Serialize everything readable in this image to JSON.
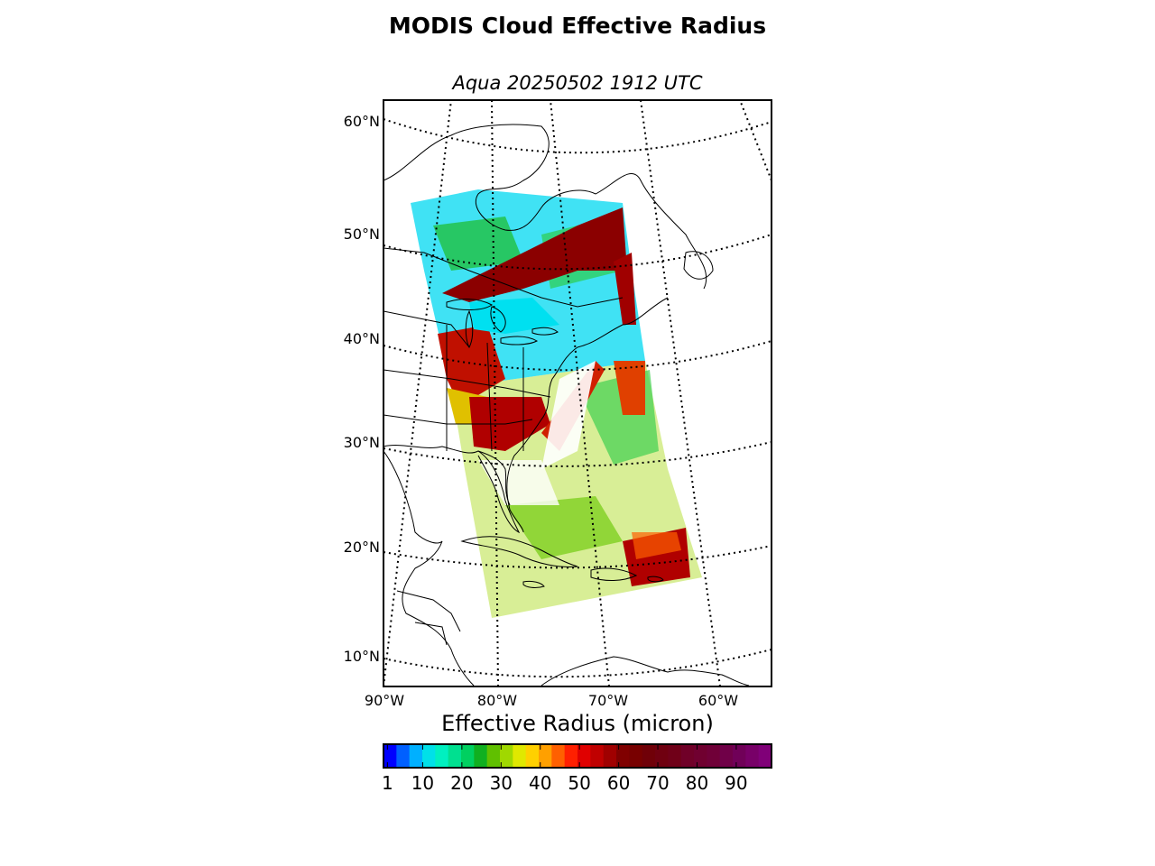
{
  "title": "MODIS Cloud Effective Radius",
  "subtitle": "Aqua 20250502 1912 UTC",
  "map": {
    "projection": "lambert-conformal",
    "lat_labels": [
      "60°N",
      "50°N",
      "40°N",
      "30°N",
      "20°N",
      "10°N"
    ],
    "lon_labels": [
      "90°W",
      "80°W",
      "70°W",
      "60°W"
    ],
    "gridlines": "dotted",
    "coastlines": true,
    "state_borders": true,
    "colors": {
      "frame": "#000000",
      "land_lines": "#000000",
      "background": "#ffffff"
    }
  },
  "colorbar": {
    "label": "Effective Radius (micron)",
    "tick_labels": [
      "1",
      "10",
      "20",
      "30",
      "40",
      "50",
      "60",
      "70",
      "80",
      "90"
    ],
    "tick_values": [
      1,
      10,
      20,
      30,
      40,
      50,
      60,
      70,
      80,
      90
    ],
    "range": [
      0,
      99
    ],
    "colors": [
      "#0000ff",
      "#0060ff",
      "#00b0ff",
      "#00e0e8",
      "#00f0c0",
      "#00e090",
      "#00d060",
      "#10b020",
      "#60c000",
      "#a0d800",
      "#e0e800",
      "#ffd000",
      "#ffa000",
      "#ff6000",
      "#ff2000",
      "#e00000",
      "#c00000",
      "#a00000",
      "#800000",
      "#780000",
      "#700008",
      "#700010",
      "#700018",
      "#700028",
      "#700030",
      "#700038",
      "#700048",
      "#700058",
      "#780068",
      "#800078"
    ]
  }
}
